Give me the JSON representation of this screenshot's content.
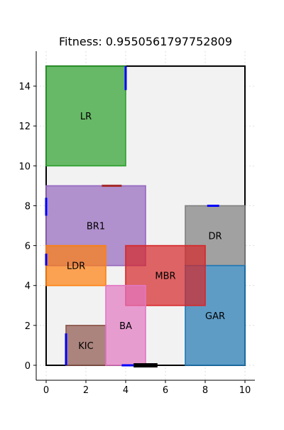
{
  "chart_data": {
    "type": "floorplan",
    "title": "Fitness: 0.9550561797752809",
    "xlabel": "",
    "ylabel": "",
    "xlim": [
      -0.5,
      10.5
    ],
    "ylim": [
      -0.75,
      15.75
    ],
    "xticks": [
      0,
      2,
      4,
      6,
      8,
      10
    ],
    "yticks": [
      0,
      2,
      4,
      6,
      8,
      10,
      12,
      14
    ],
    "grid": true,
    "boundary": {
      "x": 0,
      "y": 0,
      "w": 10,
      "h": 15,
      "color": "#000000",
      "fill": "#f2f2f2"
    },
    "rooms": [
      {
        "name": "LR",
        "x": 0,
        "y": 10,
        "w": 4,
        "h": 5,
        "color": "#2ca02c"
      },
      {
        "name": "BR1",
        "x": 0,
        "y": 5,
        "w": 5,
        "h": 4,
        "color": "#9467bd"
      },
      {
        "name": "LDR",
        "x": 0,
        "y": 4,
        "w": 3,
        "h": 2,
        "color": "#ff7f0e"
      },
      {
        "name": "DR",
        "x": 7,
        "y": 5,
        "w": 3,
        "h": 3,
        "color": "#7f7f7f"
      },
      {
        "name": "GAR",
        "x": 7,
        "y": 0,
        "w": 3,
        "h": 5,
        "color": "#1f77b4"
      },
      {
        "name": "MBR",
        "x": 4,
        "y": 3,
        "w": 4,
        "h": 3,
        "color": "#d62728"
      },
      {
        "name": "KIC",
        "x": 1,
        "y": 0,
        "w": 2,
        "h": 2,
        "color": "#8c564b"
      },
      {
        "name": "BA",
        "x": 3,
        "y": 0,
        "w": 2,
        "h": 4,
        "color": "#e377c2"
      }
    ],
    "doors": [
      {
        "x1": 4,
        "y1": 13.8,
        "x2": 4,
        "y2": 15,
        "color": "#0000ff"
      },
      {
        "x1": 0,
        "y1": 7.5,
        "x2": 0,
        "y2": 8.4,
        "color": "#0000ff"
      },
      {
        "x1": 0,
        "y1": 5,
        "x2": 0,
        "y2": 5.6,
        "color": "#0000ff"
      },
      {
        "x1": 8.1,
        "y1": 8,
        "x2": 8.7,
        "y2": 8,
        "color": "#0000ff"
      },
      {
        "x1": 1,
        "y1": 0,
        "x2": 1,
        "y2": 1.6,
        "color": "#0000ff"
      },
      {
        "x1": 3.8,
        "y1": 0,
        "x2": 4.4,
        "y2": 0,
        "color": "#0000ff"
      },
      {
        "x1": 2.8,
        "y1": 9,
        "x2": 3.8,
        "y2": 9,
        "color": "#a52a2a"
      },
      {
        "x1": 4.4,
        "y1": 0,
        "x2": 5.6,
        "y2": 0,
        "color": "#000000"
      }
    ]
  }
}
